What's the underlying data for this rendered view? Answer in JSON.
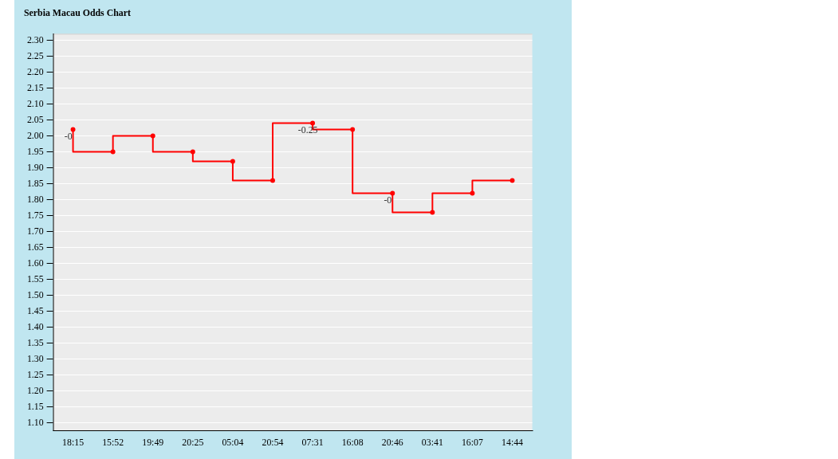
{
  "chart_data": {
    "type": "step",
    "title": "Serbia Macau Odds Chart",
    "categories": [
      "18:15",
      "15:52",
      "19:49",
      "20:25",
      "05:04",
      "20:54",
      "07:31",
      "16:08",
      "20:46",
      "03:41",
      "16:07",
      "14:44"
    ],
    "series": [
      {
        "color": "#ff0000",
        "values": [
          2.02,
          1.95,
          2.0,
          1.95,
          1.92,
          1.86,
          2.04,
          2.02,
          1.82,
          1.76,
          1.82,
          1.86
        ]
      }
    ],
    "ylim": [
      1.075,
      2.32
    ],
    "yticks": [
      {
        "value": 1.1,
        "label": "1.10"
      },
      {
        "value": 1.15,
        "label": "1.15"
      },
      {
        "value": 1.2,
        "label": "1.20"
      },
      {
        "value": 1.25,
        "label": "1.25"
      },
      {
        "value": 1.3,
        "label": "1.30"
      },
      {
        "value": 1.35,
        "label": "1.35"
      },
      {
        "value": 1.4,
        "label": "1.40"
      },
      {
        "value": 1.45,
        "label": "1.45"
      },
      {
        "value": 1.5,
        "label": "1.50"
      },
      {
        "value": 1.55,
        "label": "1.55"
      },
      {
        "value": 1.6,
        "label": "1.60"
      },
      {
        "value": 1.65,
        "label": "1.65"
      },
      {
        "value": 1.7,
        "label": "1.70"
      },
      {
        "value": 1.75,
        "label": "1.75"
      },
      {
        "value": 1.8,
        "label": "1.80"
      },
      {
        "value": 1.85,
        "label": "1.85"
      },
      {
        "value": 1.9,
        "label": "1.90"
      },
      {
        "value": 1.95,
        "label": "1.95"
      },
      {
        "value": 2.0,
        "label": "2.00"
      },
      {
        "value": 2.05,
        "label": "2.05"
      },
      {
        "value": 2.1,
        "label": "2.10"
      },
      {
        "value": 2.15,
        "label": "2.15"
      },
      {
        "value": 2.2,
        "label": "2.20"
      },
      {
        "value": 2.25,
        "label": "2.25"
      },
      {
        "value": 2.3,
        "label": "2.30"
      }
    ],
    "annotations": [
      {
        "text": "-0",
        "x": "18:15",
        "y": 2.02
      },
      {
        "text": "-0.25",
        "x": "07:31",
        "y": 2.04
      },
      {
        "text": "-0",
        "x": "20:46",
        "y": 1.82
      }
    ],
    "grid": "y",
    "marker": "circle",
    "line_style": "solid",
    "legend": false
  }
}
